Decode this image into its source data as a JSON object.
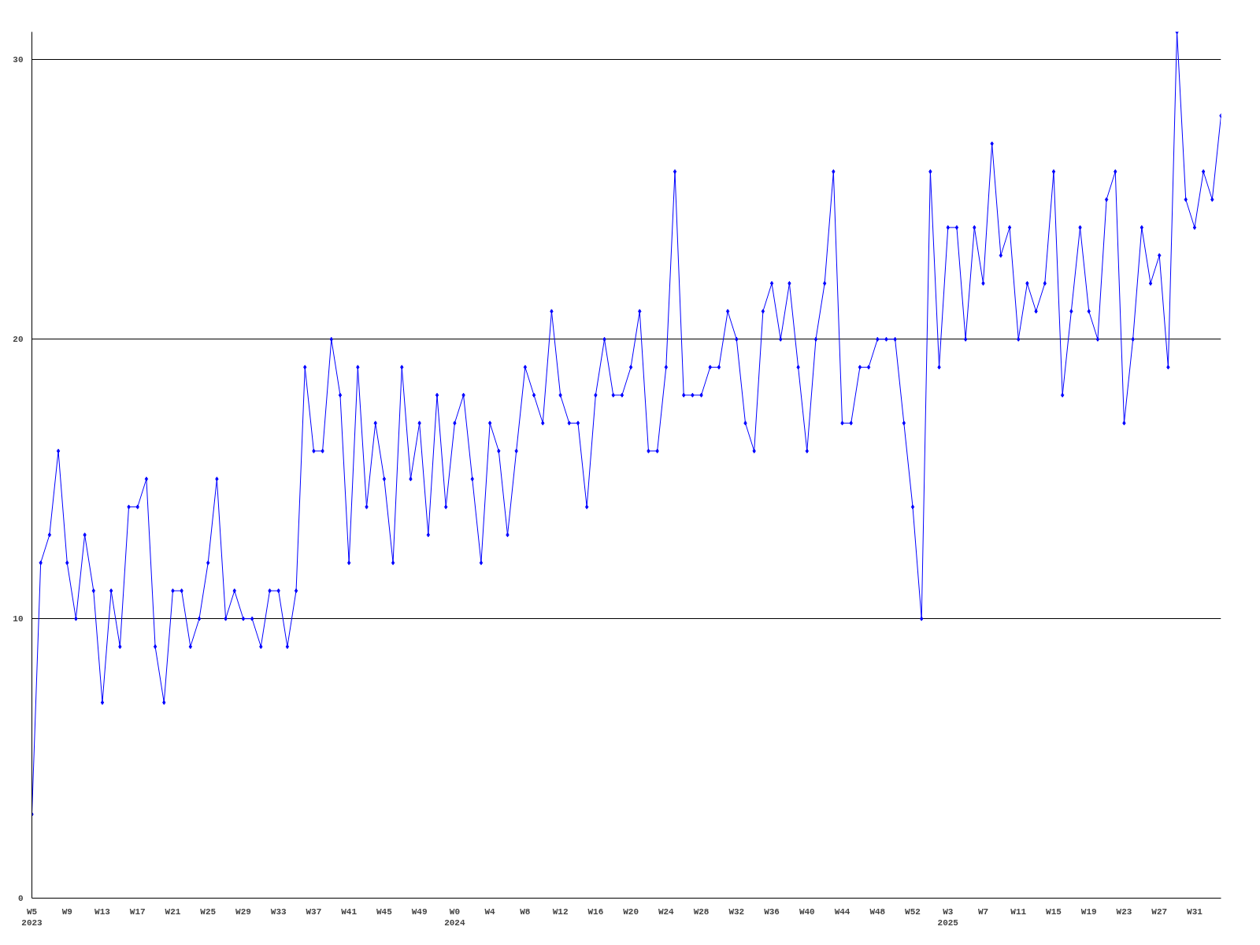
{
  "chart_data": {
    "type": "line",
    "color": "#0000ff",
    "marker": "diamond",
    "line_style": "solid",
    "grid": "y",
    "categories": [
      "W5\n2023",
      null,
      null,
      null,
      "W9",
      null,
      null,
      null,
      "W13",
      null,
      null,
      null,
      "W17",
      null,
      null,
      null,
      "W21",
      null,
      null,
      null,
      "W25",
      null,
      null,
      null,
      "W29",
      null,
      null,
      null,
      "W33",
      null,
      null,
      null,
      "W37",
      null,
      null,
      null,
      "W41",
      null,
      null,
      null,
      "W45",
      null,
      null,
      null,
      "W49",
      null,
      null,
      null,
      "W0\n2024",
      null,
      null,
      null,
      "W4",
      null,
      null,
      null,
      "W8",
      null,
      null,
      null,
      "W12",
      null,
      null,
      null,
      "W16",
      null,
      null,
      null,
      "W20",
      null,
      null,
      null,
      "W24",
      null,
      null,
      null,
      "W28",
      null,
      null,
      null,
      "W32",
      null,
      null,
      null,
      "W36",
      null,
      null,
      null,
      "W40",
      null,
      null,
      null,
      "W44",
      null,
      null,
      null,
      "W48",
      null,
      null,
      null,
      "W52",
      null,
      null,
      null,
      "W3\n2025",
      null,
      null,
      null,
      "W7",
      null,
      null,
      null,
      "W11",
      null,
      null,
      null,
      "W15",
      null,
      null,
      null,
      "W19",
      null,
      null,
      null,
      "W23",
      null,
      null,
      null,
      "W27",
      null,
      null,
      null,
      "W31",
      null,
      null,
      null
    ],
    "values": [
      3,
      12,
      13,
      16,
      12,
      10,
      13,
      11,
      7,
      11,
      9,
      14,
      14,
      15,
      9,
      7,
      11,
      11,
      9,
      10,
      12,
      15,
      10,
      11,
      10,
      10,
      9,
      11,
      11,
      9,
      11,
      19,
      16,
      16,
      20,
      18,
      12,
      19,
      14,
      17,
      15,
      12,
      19,
      15,
      17,
      13,
      18,
      14,
      17,
      18,
      15,
      12,
      17,
      16,
      13,
      16,
      19,
      18,
      17,
      21,
      18,
      17,
      17,
      14,
      18,
      20,
      18,
      18,
      19,
      21,
      16,
      16,
      19,
      26,
      18,
      18,
      18,
      19,
      19,
      21,
      20,
      17,
      16,
      21,
      22,
      20,
      22,
      19,
      16,
      20,
      22,
      26,
      17,
      17,
      19,
      19,
      20,
      20,
      20,
      17,
      14,
      10,
      26,
      19,
      24,
      24,
      20,
      24,
      22,
      27,
      23,
      24,
      20,
      22,
      21,
      22,
      26,
      18,
      21,
      24,
      21,
      20,
      25,
      26,
      17,
      20,
      24,
      22,
      23,
      19,
      31,
      25,
      24,
      26,
      25,
      28
    ],
    "ylim": [
      0,
      31
    ],
    "yticks": [
      0,
      10,
      20,
      30
    ]
  }
}
